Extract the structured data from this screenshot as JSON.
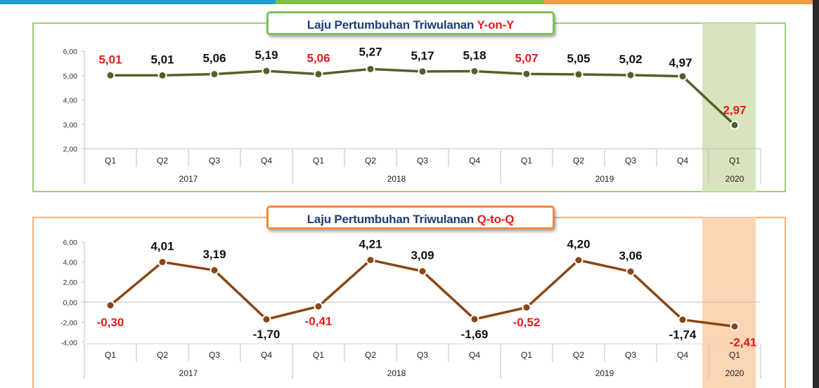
{
  "colors": {
    "topbar": [
      "#1e9ed8",
      "#7ac143",
      "#f39a3c"
    ],
    "yoy_line": "#4f6228",
    "qtq_line": "#8b4513",
    "highlight_red": "#e21b1b",
    "yoy_bg_highlight": "#d7e4bd",
    "qtq_bg_highlight": "#fcd5b4"
  },
  "chart_data": [
    {
      "type": "line",
      "title_prefix": "Laju Pertumbuhan Triwulanan ",
      "title_highlight": "Y-on-Y",
      "categories": [
        "Q1",
        "Q2",
        "Q3",
        "Q4",
        "Q1",
        "Q2",
        "Q3",
        "Q4",
        "Q1",
        "Q2",
        "Q3",
        "Q4",
        "Q1"
      ],
      "years": [
        "2017",
        "2018",
        "2019",
        "2020"
      ],
      "values": [
        5.01,
        5.01,
        5.06,
        5.19,
        5.06,
        5.27,
        5.17,
        5.18,
        5.07,
        5.05,
        5.02,
        4.97,
        2.97
      ],
      "value_labels": [
        "5,01",
        "5,01",
        "5,06",
        "5,19",
        "5,06",
        "5,27",
        "5,17",
        "5,18",
        "5,07",
        "5,05",
        "5,02",
        "4,97",
        "2,97"
      ],
      "red_labels": [
        0,
        4,
        8,
        12
      ],
      "ylim": [
        2,
        6
      ],
      "yticks": [
        "6,00",
        "5,00",
        "4,00",
        "3,00",
        "2,00"
      ],
      "highlight_last": true
    },
    {
      "type": "line",
      "title_prefix": "Laju Pertumbuhan Triwulanan ",
      "title_highlight": "Q-to-Q",
      "categories": [
        "Q1",
        "Q2",
        "Q3",
        "Q4",
        "Q1",
        "Q2",
        "Q3",
        "Q4",
        "Q1",
        "Q2",
        "Q3",
        "Q4",
        "Q1"
      ],
      "years": [
        "2017",
        "2018",
        "2019",
        "2020"
      ],
      "values": [
        -0.3,
        4.01,
        3.19,
        -1.7,
        -0.41,
        4.21,
        3.09,
        -1.69,
        -0.52,
        4.2,
        3.06,
        -1.74,
        -2.41
      ],
      "value_labels": [
        "-0,30",
        "4,01",
        "3,19",
        "-1,70",
        "-0,41",
        "4,21",
        "3,09",
        "-1,69",
        "-0,52",
        "4,20",
        "3,06",
        "-1,74",
        "-2,41"
      ],
      "red_labels": [
        0,
        4,
        8,
        12
      ],
      "ylim": [
        -4,
        6
      ],
      "yticks": [
        "6,00",
        "4,00",
        "2,00",
        "0,00",
        "-2,00",
        "-4,00"
      ],
      "highlight_last": true
    }
  ]
}
